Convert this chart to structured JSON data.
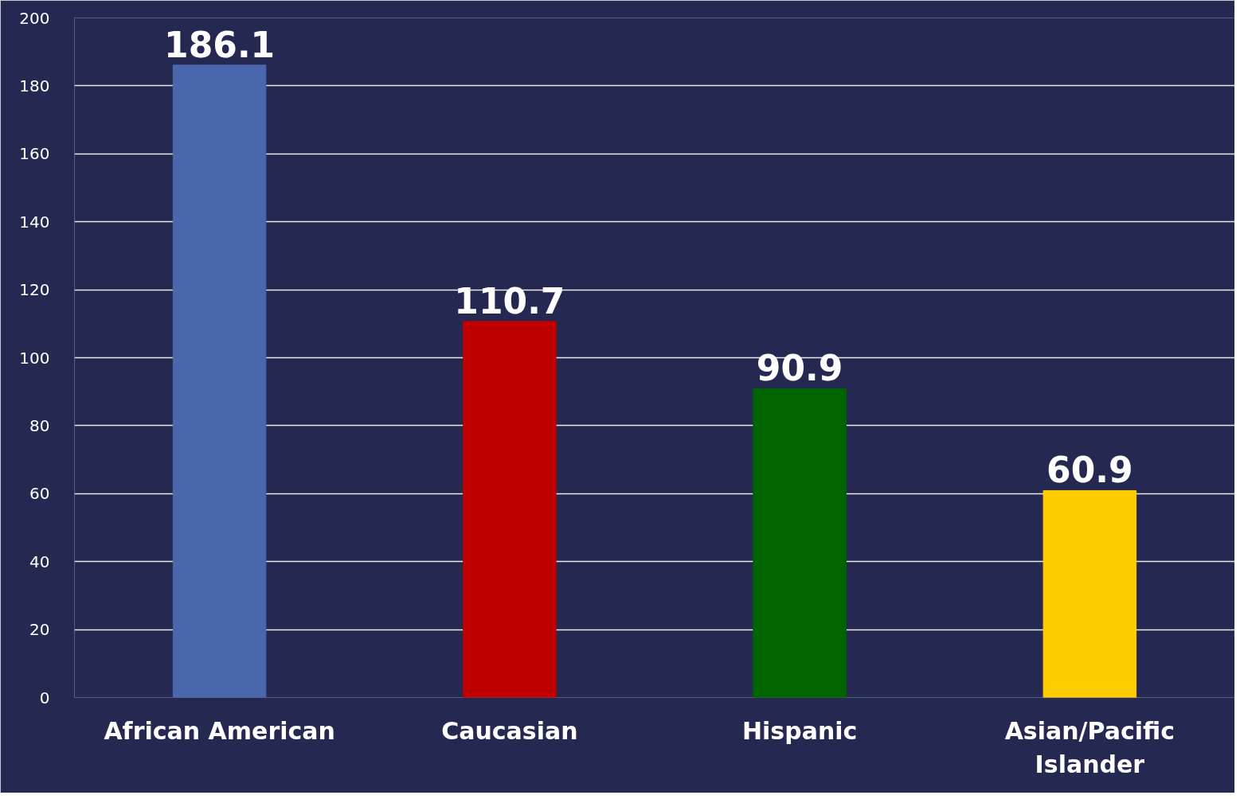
{
  "chart_data": {
    "type": "bar",
    "categories": [
      "African American",
      "Caucasian",
      "Hispanic",
      "Asian/Pacific Islander"
    ],
    "values": [
      186.1,
      110.7,
      90.9,
      60.9
    ],
    "colors": [
      "#4a67ae",
      "#c00000",
      "#006400",
      "#ffcc00"
    ],
    "ylim": [
      0,
      200
    ],
    "yticks": [
      0,
      20,
      40,
      60,
      80,
      100,
      120,
      140,
      160,
      180,
      200
    ],
    "grid": "y",
    "data_labels": true
  }
}
